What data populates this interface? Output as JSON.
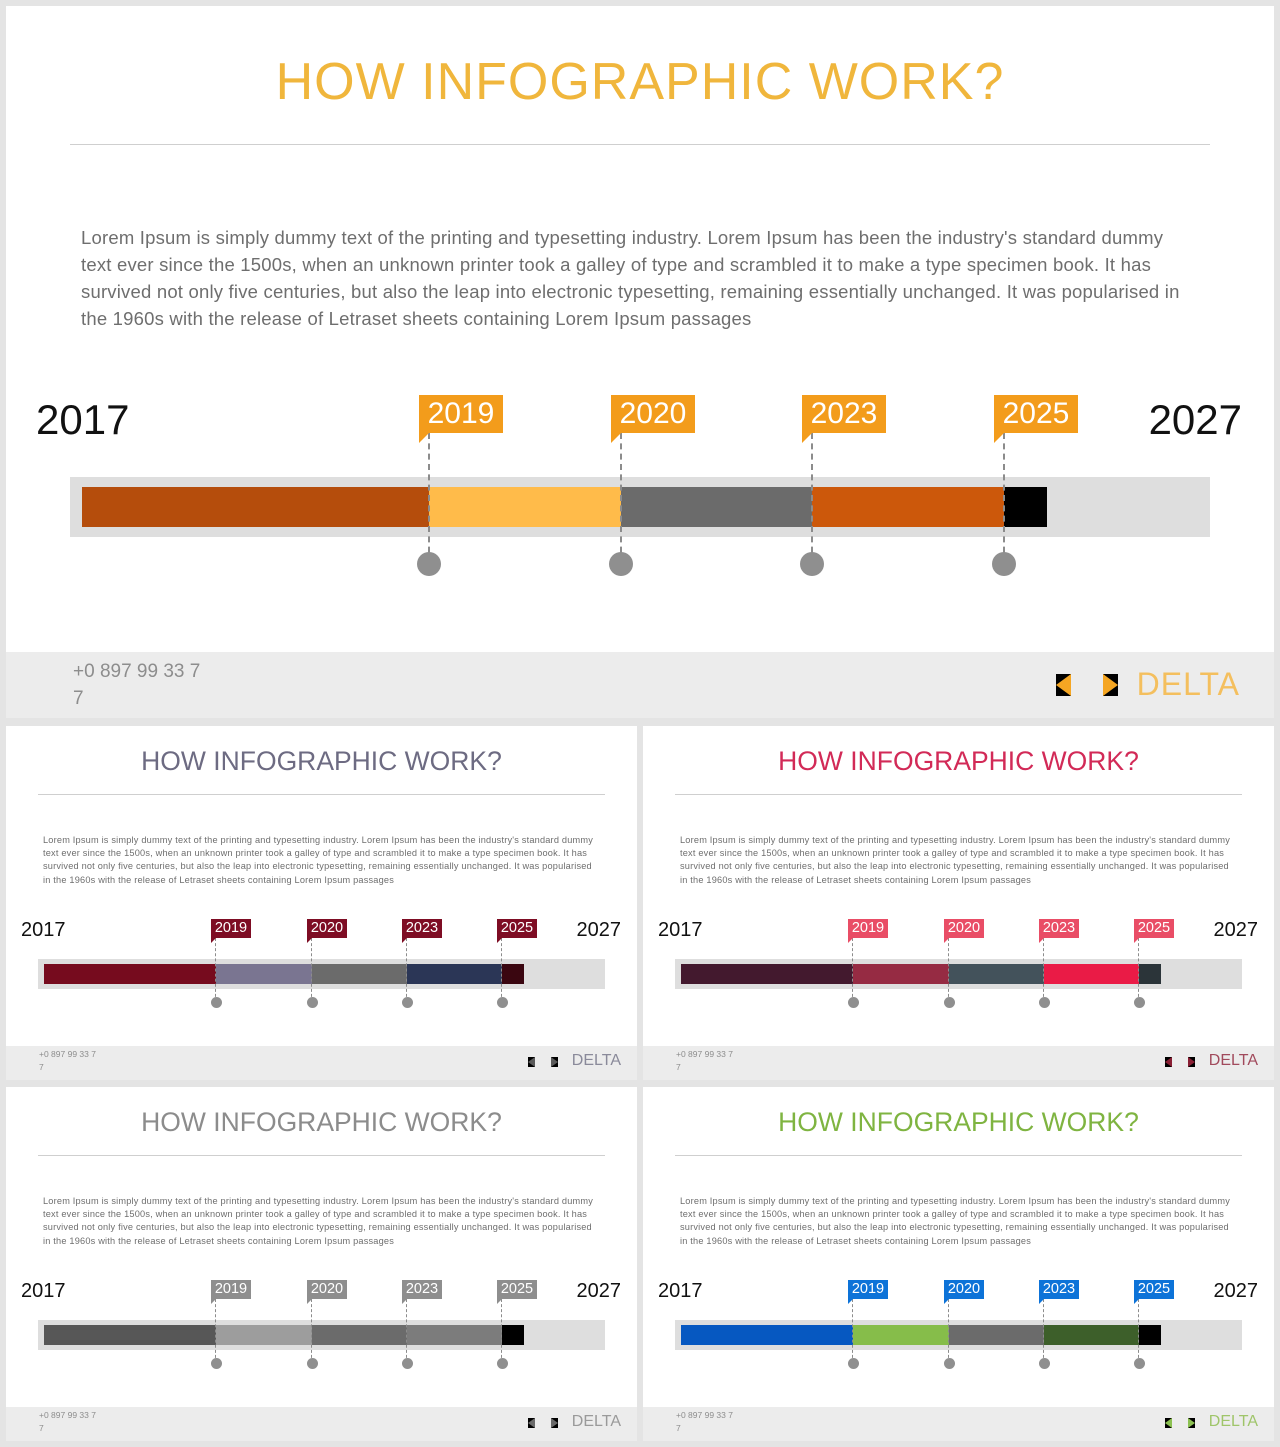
{
  "slides": [
    {
      "title": "HOW INFOGRAPHIC WORK?",
      "body": "Lorem Ipsum is simply dummy text of the printing and typesetting industry. Lorem Ipsum has been the industry's standard dummy text ever since the 1500s, when an unknown printer took a galley of type and scrambled it to make a type specimen book. It has survived not only five centuries, but also the leap into electronic typesetting, remaining essentially unchanged. It was popularised in the 1960s with the release of Letraset sheets containing Lorem Ipsum passages",
      "year_start": "2017",
      "year_end": "2027",
      "milestones": [
        "2019",
        "2020",
        "2023",
        "2025"
      ],
      "phone_line1": "+0 897 99 33 7",
      "phone_line2": "7",
      "brand": "DELTA",
      "colors": {
        "title": "#f0b63c",
        "flag": "#f39c1b",
        "arrows": "#f5a623",
        "brand": "#f4bf5e",
        "segments": [
          "#b54d0c",
          "#ffbb4a",
          "#6b6b6b",
          "#cc580b",
          "#000000"
        ]
      }
    },
    {
      "title": "HOW INFOGRAPHIC WORK?",
      "body": "Lorem Ipsum is simply dummy text of the printing and typesetting industry. Lorem Ipsum has been the industry's standard dummy text ever since the 1500s, when an unknown printer took a galley of type and scrambled it to make a type specimen book. It has survived not only five centuries, but also the leap into electronic typesetting, remaining essentially unchanged. It was popularised in the 1960s with the release of Letraset sheets containing Lorem Ipsum passages",
      "year_start": "2017",
      "year_end": "2027",
      "milestones": [
        "2019",
        "2020",
        "2023",
        "2025"
      ],
      "phone_line1": "+0 897 99 33 7",
      "phone_line2": "7",
      "brand": "DELTA",
      "colors": {
        "title": "#6d6b82",
        "flag": "#7e0d24",
        "arrows": "#5a5a5a",
        "brand": "#8a8a9a",
        "segments": [
          "#760b1e",
          "#7a7591",
          "#6b6b6b",
          "#2b3656",
          "#3a0610"
        ]
      }
    },
    {
      "title": "HOW INFOGRAPHIC WORK?",
      "body": "Lorem Ipsum is simply dummy text of the printing and typesetting industry. Lorem Ipsum has been the industry's standard dummy text ever since the 1500s, when an unknown printer took a galley of type and scrambled it to make a type specimen book. It has survived not only five centuries, but also the leap into electronic typesetting, remaining essentially unchanged. It was popularised in the 1960s with the release of Letraset sheets containing Lorem Ipsum passages",
      "year_start": "2017",
      "year_end": "2027",
      "milestones": [
        "2019",
        "2020",
        "2023",
        "2025"
      ],
      "phone_line1": "+0 897 99 33 7",
      "phone_line2": "7",
      "brand": "DELTA",
      "colors": {
        "title": "#d22a57",
        "flag": "#e94d66",
        "arrows": "#8a1f34",
        "brand": "#a14a5c",
        "segments": [
          "#43192e",
          "#962b43",
          "#43525b",
          "#ea1b46",
          "#2b3439"
        ]
      }
    },
    {
      "title": "HOW INFOGRAPHIC WORK?",
      "body": "Lorem Ipsum is simply dummy text of the printing and typesetting industry. Lorem Ipsum has been the industry's standard dummy text ever since the 1500s, when an unknown printer took a galley of type and scrambled it to make a type specimen book. It has survived not only five centuries, but also the leap into electronic typesetting, remaining essentially unchanged. It was popularised in the 1960s with the release of Letraset sheets containing Lorem Ipsum passages",
      "year_start": "2017",
      "year_end": "2027",
      "milestones": [
        "2019",
        "2020",
        "2023",
        "2025"
      ],
      "phone_line1": "+0 897 99 33 7",
      "phone_line2": "7",
      "brand": "DELTA",
      "colors": {
        "title": "#8c8c8c",
        "flag": "#8e8e8e",
        "arrows": "#6a6a6a",
        "brand": "#9a9a9a",
        "segments": [
          "#575757",
          "#9d9d9d",
          "#6b6b6b",
          "#7c7c7c",
          "#000000"
        ]
      }
    },
    {
      "title": "HOW INFOGRAPHIC WORK?",
      "body": "Lorem Ipsum is simply dummy text of the printing and typesetting industry. Lorem Ipsum has been the industry's standard dummy text ever since the 1500s, when an unknown printer took a galley of type and scrambled it to make a type specimen book. It has survived not only five centuries, but also the leap into electronic typesetting, remaining essentially unchanged. It was popularised in the 1960s with the release of Letraset sheets containing Lorem Ipsum passages",
      "year_start": "2017",
      "year_end": "2027",
      "milestones": [
        "2019",
        "2020",
        "2023",
        "2025"
      ],
      "phone_line1": "+0 897 99 33 7",
      "phone_line2": "7",
      "brand": "DELTA",
      "colors": {
        "title": "#7fb441",
        "flag": "#0d73d8",
        "arrows": "#8cc152",
        "brand": "#9fc56a",
        "segments": [
          "#0658c1",
          "#86bd4a",
          "#6b6b6b",
          "#3d5f2a",
          "#000000"
        ]
      }
    }
  ]
}
